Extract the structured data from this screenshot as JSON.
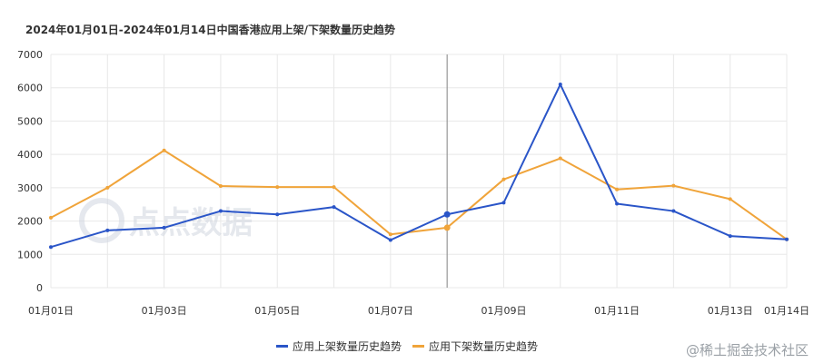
{
  "chart_data": {
    "type": "line",
    "title": "2024年01月01日-2024年01月14日中国香港应用上架/下架数量历史趋势",
    "categories": [
      "01月01日",
      "01月02日",
      "01月03日",
      "01月04日",
      "01月05日",
      "01月06日",
      "01月07日",
      "01月08日",
      "01月09日",
      "01月10日",
      "01月11日",
      "01月12日",
      "01月13日",
      "01月14日"
    ],
    "x_tick_labels": [
      "01月01日",
      "01月03日",
      "01月05日",
      "01月07日",
      "01月09日",
      "01月11日",
      "01月13日",
      "01月14日"
    ],
    "y_ticks": [
      0,
      1000,
      2000,
      3000,
      4000,
      5000,
      6000,
      7000
    ],
    "ylim": [
      0,
      7000
    ],
    "series": [
      {
        "name": "应用上架数量历史趋势",
        "color": "#2a55c8",
        "values": [
          1220,
          1720,
          1800,
          2300,
          2200,
          2420,
          1430,
          2200,
          2550,
          6100,
          2520,
          2300,
          1550,
          1450
        ]
      },
      {
        "name": "应用下架数量历史趋势",
        "color": "#f0a43a",
        "values": [
          2100,
          3000,
          4120,
          3050,
          3020,
          3020,
          1600,
          1800,
          3250,
          3880,
          2950,
          3060,
          2660,
          1450
        ]
      }
    ],
    "highlight_category": "01月08日",
    "legend_position": "bottom-center",
    "grid": true
  },
  "watermark": {
    "text": "点点数据"
  },
  "credit": {
    "text": "@稀土掘金技术社区"
  }
}
